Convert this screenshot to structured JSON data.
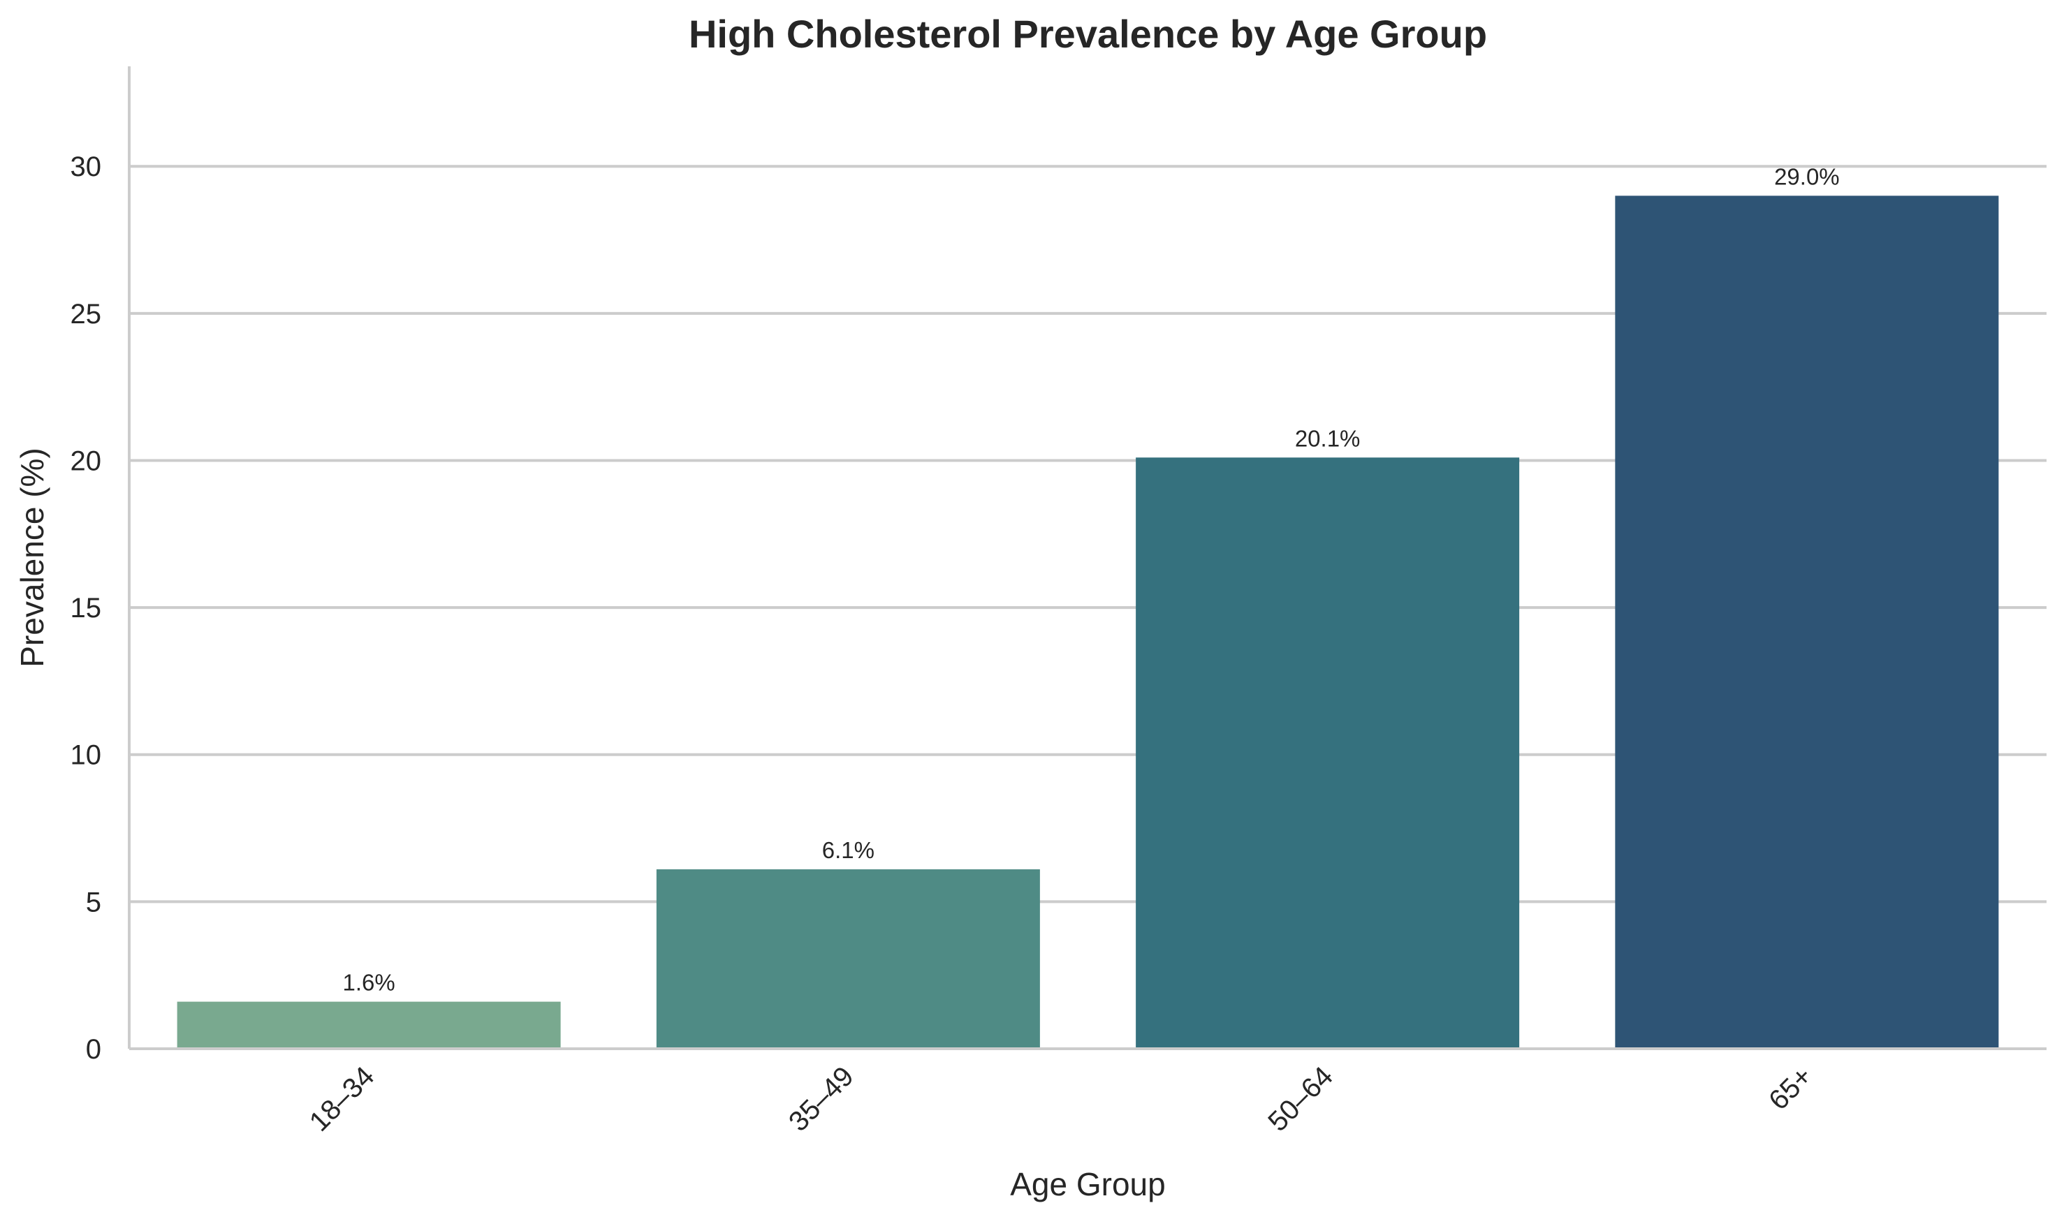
{
  "chart_data": {
    "type": "bar",
    "title": "High Cholesterol Prevalence by Age Group",
    "xlabel": "Age Group",
    "ylabel": "Prevalence (%)",
    "categories": [
      "18–34",
      "35–49",
      "50–64",
      "65+"
    ],
    "values": [
      1.6,
      6.1,
      20.1,
      29.0
    ],
    "value_labels": [
      "1.6%",
      "6.1%",
      "20.1%",
      "29.0%"
    ],
    "colors": [
      "#79a98f",
      "#4f8b85",
      "#35717e",
      "#2e5475"
    ],
    "ylim": [
      0,
      33.4
    ],
    "yticks": [
      0,
      5,
      10,
      15,
      20,
      25,
      30
    ],
    "ytick_labels": [
      "0",
      "5",
      "10",
      "15",
      "20",
      "25",
      "30"
    ],
    "grid": "horizontal",
    "legend": "none",
    "gridline_color": "#cccccc",
    "text_color": "#262626"
  }
}
